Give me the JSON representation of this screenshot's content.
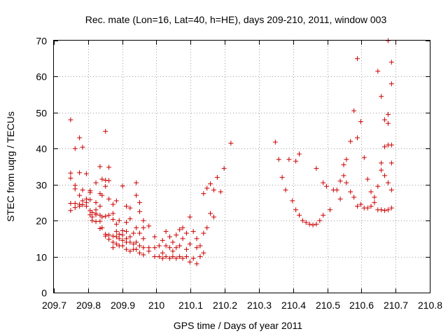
{
  "chart_data": {
    "type": "scatter",
    "title": "Rec. mate (Lon=16, Lat=40, h=HE), days 209-210, 2011, window 003",
    "xlabel": "GPS time / Days of year 2011",
    "ylabel": "STEC from uqrg / TECUs",
    "xlim": [
      209.7,
      210.8
    ],
    "ylim": [
      0,
      70
    ],
    "xticks": [
      209.7,
      209.8,
      209.9,
      210.0,
      210.1,
      210.2,
      210.3,
      210.4,
      210.5,
      210.6,
      210.7,
      210.8
    ],
    "xtick_labels": [
      "209.7",
      "209.8",
      "209.9",
      "210",
      "210.1",
      "210.2",
      "210.3",
      "210.4",
      "210.5",
      "210.6",
      "210.7",
      "210.8"
    ],
    "yticks": [
      0,
      10,
      20,
      30,
      40,
      50,
      60,
      70
    ],
    "ytick_labels": [
      "0",
      "10",
      "20",
      "30",
      "40",
      "50",
      "60",
      "70"
    ],
    "grid": true,
    "marker": "+",
    "series_color": "#cc0000",
    "series": [
      {
        "name": "STEC",
        "points": [
          [
            209.749,
            48.0
          ],
          [
            209.749,
            33.2
          ],
          [
            209.749,
            31.8
          ],
          [
            209.749,
            24.8
          ],
          [
            209.749,
            22.8
          ],
          [
            209.762,
            40.0
          ],
          [
            209.762,
            29.8
          ],
          [
            209.762,
            28.8
          ],
          [
            209.762,
            24.8
          ],
          [
            209.762,
            23.6
          ],
          [
            209.775,
            43.0
          ],
          [
            209.775,
            33.3
          ],
          [
            209.775,
            27.0
          ],
          [
            209.775,
            24.5
          ],
          [
            209.775,
            24.0
          ],
          [
            209.784,
            40.4
          ],
          [
            209.784,
            28.5
          ],
          [
            209.784,
            25.5
          ],
          [
            209.784,
            24.4
          ],
          [
            209.795,
            33.0
          ],
          [
            209.795,
            26.0
          ],
          [
            209.795,
            25.0
          ],
          [
            209.795,
            24.0
          ],
          [
            209.806,
            28.3
          ],
          [
            209.806,
            27.8
          ],
          [
            209.806,
            25.8
          ],
          [
            209.806,
            22.8
          ],
          [
            209.806,
            21.6
          ],
          [
            209.812,
            22.3
          ],
          [
            209.812,
            21.0
          ],
          [
            209.812,
            20.0
          ],
          [
            209.823,
            30.5
          ],
          [
            209.823,
            25.0
          ],
          [
            209.823,
            23.0
          ],
          [
            209.823,
            22.0
          ],
          [
            209.823,
            21.6
          ],
          [
            209.823,
            19.7
          ],
          [
            209.835,
            35.0
          ],
          [
            209.835,
            27.5
          ],
          [
            209.835,
            24.0
          ],
          [
            209.835,
            21.5
          ],
          [
            209.835,
            19.8
          ],
          [
            209.835,
            17.8
          ],
          [
            209.841,
            31.5
          ],
          [
            209.841,
            27.0
          ],
          [
            209.841,
            21.0
          ],
          [
            209.841,
            18.0
          ],
          [
            209.851,
            44.8
          ],
          [
            209.851,
            31.2
          ],
          [
            209.851,
            29.5
          ],
          [
            209.851,
            21.2
          ],
          [
            209.851,
            16.2
          ],
          [
            209.851,
            15.7
          ],
          [
            209.861,
            34.8
          ],
          [
            209.861,
            31.1
          ],
          [
            209.861,
            26.0
          ],
          [
            209.861,
            21.5
          ],
          [
            209.861,
            16.0
          ],
          [
            209.861,
            14.8
          ],
          [
            209.873,
            24.5
          ],
          [
            209.873,
            22.0
          ],
          [
            209.873,
            20.3
          ],
          [
            209.873,
            15.7
          ],
          [
            209.873,
            14.0
          ],
          [
            209.873,
            12.5
          ],
          [
            209.883,
            25.5
          ],
          [
            209.883,
            19.0
          ],
          [
            209.883,
            17.0
          ],
          [
            209.883,
            15.5
          ],
          [
            209.883,
            13.5
          ],
          [
            209.891,
            20.0
          ],
          [
            209.891,
            16.2
          ],
          [
            209.891,
            15.0
          ],
          [
            209.891,
            13.0
          ],
          [
            209.901,
            29.6
          ],
          [
            209.901,
            17.2
          ],
          [
            209.901,
            16.0
          ],
          [
            209.901,
            14.5
          ],
          [
            209.901,
            13.0
          ],
          [
            209.912,
            24.0
          ],
          [
            209.912,
            19.5
          ],
          [
            209.912,
            17.0
          ],
          [
            209.912,
            15.0
          ],
          [
            209.912,
            14.0
          ],
          [
            209.912,
            12.0
          ],
          [
            209.923,
            23.5
          ],
          [
            209.923,
            20.5
          ],
          [
            209.923,
            15.5
          ],
          [
            209.923,
            14.0
          ],
          [
            209.923,
            11.5
          ],
          [
            209.933,
            16.5
          ],
          [
            209.933,
            13.5
          ],
          [
            209.933,
            12.0
          ],
          [
            209.941,
            30.5
          ],
          [
            209.941,
            27.0
          ],
          [
            209.941,
            18.0
          ],
          [
            209.941,
            14.0
          ],
          [
            209.941,
            12.0
          ],
          [
            209.951,
            25.0
          ],
          [
            209.951,
            22.5
          ],
          [
            209.951,
            16.5
          ],
          [
            209.951,
            13.0
          ],
          [
            209.951,
            11.0
          ],
          [
            209.962,
            20.0
          ],
          [
            209.962,
            18.0
          ],
          [
            209.962,
            15.0
          ],
          [
            209.962,
            12.5
          ],
          [
            209.962,
            10.5
          ],
          [
            209.978,
            18.5
          ],
          [
            209.978,
            12.5
          ],
          [
            209.978,
            11.5
          ],
          [
            209.995,
            15.5
          ],
          [
            209.995,
            12.5
          ],
          [
            209.995,
            10.0
          ],
          [
            210.008,
            13.0
          ],
          [
            210.008,
            10.0
          ],
          [
            210.018,
            14.5
          ],
          [
            210.018,
            11.0
          ],
          [
            210.018,
            9.5
          ],
          [
            210.028,
            17.0
          ],
          [
            210.028,
            13.0
          ],
          [
            210.028,
            10.0
          ],
          [
            210.039,
            15.5
          ],
          [
            210.039,
            12.5
          ],
          [
            210.039,
            9.5
          ],
          [
            210.048,
            14.0
          ],
          [
            210.048,
            11.5
          ],
          [
            210.048,
            10.0
          ],
          [
            210.058,
            16.0
          ],
          [
            210.058,
            12.5
          ],
          [
            210.058,
            9.5
          ],
          [
            210.068,
            17.5
          ],
          [
            210.068,
            13.0
          ],
          [
            210.068,
            10.0
          ],
          [
            210.077,
            18.0
          ],
          [
            210.077,
            15.0
          ],
          [
            210.077,
            9.5
          ],
          [
            210.088,
            16.5
          ],
          [
            210.088,
            12.0
          ],
          [
            210.088,
            10.0
          ],
          [
            210.098,
            21.0
          ],
          [
            210.098,
            13.5
          ],
          [
            210.098,
            8.5
          ],
          [
            210.108,
            17.0
          ],
          [
            210.108,
            9.5
          ],
          [
            210.118,
            15.0
          ],
          [
            210.118,
            12.5
          ],
          [
            210.118,
            8.0
          ],
          [
            210.128,
            13.0
          ],
          [
            210.128,
            10.0
          ],
          [
            210.138,
            27.5
          ],
          [
            210.138,
            16.5
          ],
          [
            210.138,
            11.0
          ],
          [
            210.148,
            29.0
          ],
          [
            210.148,
            18.0
          ],
          [
            210.158,
            30.2
          ],
          [
            210.158,
            22.0
          ],
          [
            210.168,
            28.5
          ],
          [
            210.168,
            21.0
          ],
          [
            210.178,
            32.0
          ],
          [
            210.188,
            28.0
          ],
          [
            210.198,
            34.5
          ],
          [
            210.218,
            41.5
          ],
          [
            210.348,
            41.8
          ],
          [
            210.358,
            37.0
          ],
          [
            210.368,
            32.0
          ],
          [
            210.378,
            28.5
          ],
          [
            210.388,
            37.0
          ],
          [
            210.398,
            25.5
          ],
          [
            210.408,
            36.5
          ],
          [
            210.408,
            23.0
          ],
          [
            210.418,
            38.5
          ],
          [
            210.418,
            21.5
          ],
          [
            210.428,
            20.0
          ],
          [
            210.438,
            19.5
          ],
          [
            210.448,
            19.0
          ],
          [
            210.458,
            18.8
          ],
          [
            210.468,
            34.5
          ],
          [
            210.468,
            19.0
          ],
          [
            210.478,
            20.0
          ],
          [
            210.488,
            30.5
          ],
          [
            210.488,
            21.5
          ],
          [
            210.498,
            29.5
          ],
          [
            210.508,
            23.0
          ],
          [
            210.518,
            28.5
          ],
          [
            210.528,
            28.5
          ],
          [
            210.538,
            31.0
          ],
          [
            210.538,
            26.0
          ],
          [
            210.548,
            35.5
          ],
          [
            210.548,
            32.5
          ],
          [
            210.556,
            37.0
          ],
          [
            210.556,
            30.5
          ],
          [
            210.568,
            42.0
          ],
          [
            210.568,
            28.0
          ],
          [
            210.578,
            50.5
          ],
          [
            210.578,
            26.5
          ],
          [
            210.588,
            65.0
          ],
          [
            210.588,
            43.0
          ],
          [
            210.588,
            24.0
          ],
          [
            210.598,
            47.5
          ],
          [
            210.598,
            24.5
          ],
          [
            210.608,
            37.5
          ],
          [
            210.608,
            23.5
          ],
          [
            210.618,
            31.5
          ],
          [
            210.618,
            23.5
          ],
          [
            210.628,
            28.0
          ],
          [
            210.628,
            24.0
          ],
          [
            210.638,
            26.5
          ],
          [
            210.638,
            25.0
          ],
          [
            210.648,
            61.5
          ],
          [
            210.648,
            29.5
          ],
          [
            210.648,
            23.0
          ],
          [
            210.658,
            54.5
          ],
          [
            210.658,
            36.0
          ],
          [
            210.658,
            34.0
          ],
          [
            210.658,
            23.0
          ],
          [
            210.668,
            48.0
          ],
          [
            210.668,
            40.5
          ],
          [
            210.668,
            32.5
          ],
          [
            210.668,
            22.8
          ],
          [
            210.678,
            70.0
          ],
          [
            210.678,
            49.5
          ],
          [
            210.678,
            47.0
          ],
          [
            210.678,
            41.0
          ],
          [
            210.678,
            30.5
          ],
          [
            210.678,
            23.0
          ],
          [
            210.688,
            64.0
          ],
          [
            210.688,
            58.0
          ],
          [
            210.688,
            41.0
          ],
          [
            210.688,
            36.0
          ],
          [
            210.688,
            28.5
          ],
          [
            210.688,
            23.5
          ]
        ]
      }
    ]
  }
}
